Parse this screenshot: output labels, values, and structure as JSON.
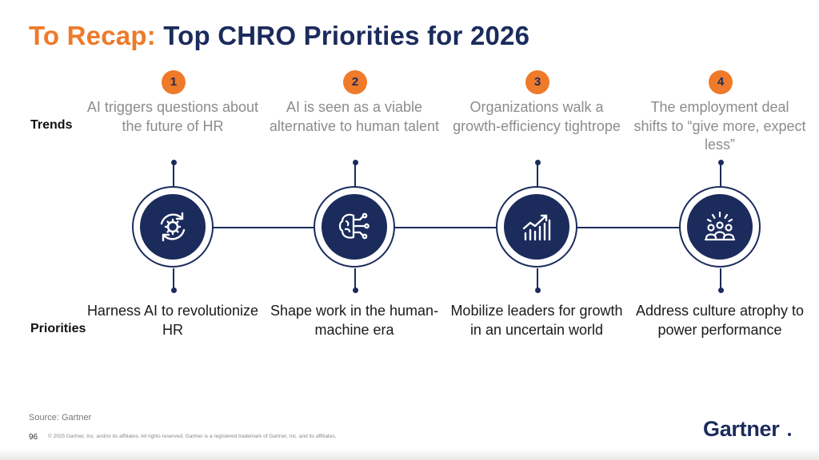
{
  "title": {
    "prefix": "To Recap:",
    "main": "Top CHRO Priorities for 2026"
  },
  "row_labels": {
    "trends": "Trends",
    "priorities": "Priorities"
  },
  "items": [
    {
      "number": "1",
      "trend": "AI triggers questions about the future of HR",
      "priority": "Harness AI to revolutionize HR",
      "icon": "ai-gear-cycle-icon"
    },
    {
      "number": "2",
      "trend": "AI is seen as a viable alternative to human talent",
      "priority": "Shape work in the human-machine era",
      "icon": "brain-circuit-icon"
    },
    {
      "number": "3",
      "trend": "Organizations walk a growth-efficiency tightrope",
      "priority": "Mobilize leaders for growth in an uncertain world",
      "icon": "growth-chart-icon"
    },
    {
      "number": "4",
      "trend": "The employment deal shifts to “give more, expect less”",
      "priority": "Address culture atrophy to power performance",
      "icon": "team-meeting-icon"
    }
  ],
  "footer": {
    "source": "Source: Gartner",
    "page_number": "96",
    "copyright": "© 2025 Gartner, Inc. and/or its affiliates. All rights reserved. Gartner is a registered trademark of Gartner, Inc. and its affiliates.",
    "logo": "Gartner"
  },
  "colors": {
    "orange": "#ee7a2a",
    "navy": "#1b2b5c",
    "trend_gray": "#8c8c8c"
  }
}
